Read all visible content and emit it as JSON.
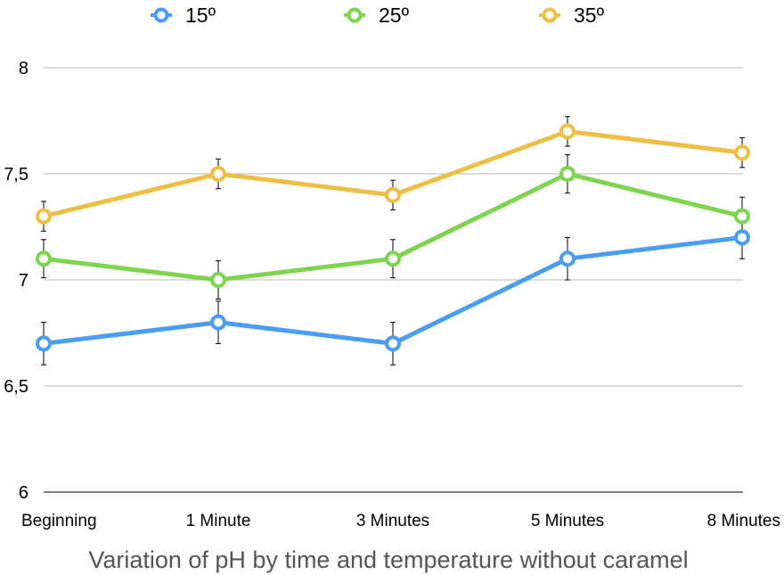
{
  "chart_data": {
    "type": "line",
    "title": "Variation of pH by time and temperature without caramel",
    "xlabel": "",
    "ylabel": "",
    "categories": [
      "Beginning",
      "1 Minute",
      "3 Minutes",
      "5 Minutes",
      "8 Minutes"
    ],
    "ylim": [
      6,
      8
    ],
    "yticks": [
      6,
      6.5,
      7,
      7.5,
      8
    ],
    "ytick_labels": [
      "6",
      "6,5",
      "7",
      "7,5",
      "8"
    ],
    "grid": true,
    "legend_position": "top",
    "series": [
      {
        "name": "15º",
        "color": "#4a9df0",
        "values": [
          6.7,
          6.8,
          6.7,
          7.1,
          7.2
        ],
        "errors": [
          0.1,
          0.1,
          0.1,
          0.1,
          0.1
        ]
      },
      {
        "name": "25º",
        "color": "#7ed44f",
        "values": [
          7.1,
          7.0,
          7.1,
          7.5,
          7.3
        ],
        "errors": [
          0.09,
          0.09,
          0.09,
          0.09,
          0.09
        ]
      },
      {
        "name": "35º",
        "color": "#eebf45",
        "values": [
          7.3,
          7.5,
          7.4,
          7.7,
          7.6
        ],
        "errors": [
          0.07,
          0.07,
          0.07,
          0.07,
          0.07
        ]
      }
    ]
  }
}
